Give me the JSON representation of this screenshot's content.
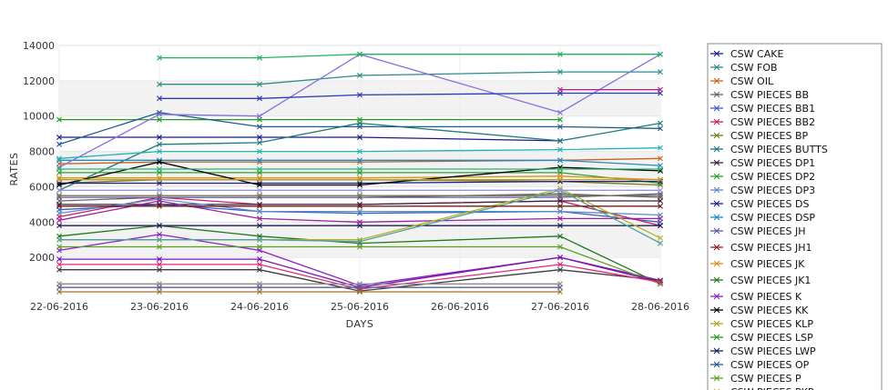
{
  "chart_data": {
    "type": "line",
    "xlabel": "DAYS",
    "ylabel": "RATES",
    "ylim": [
      0,
      14000
    ],
    "y_ticks": [
      2000,
      4000,
      6000,
      8000,
      10000,
      12000,
      14000
    ],
    "grid": "horizontal bands",
    "legend_placement": "right",
    "x": [
      "22-06-2016",
      "23-06-2016",
      "24-06-2016",
      "25-06-2016",
      "26-06-2016",
      "27-06-2016",
      "28-06-2016"
    ],
    "series": [
      {
        "name": "CSW CAKE",
        "color": "#1a1a8c",
        "values": [
          8800,
          8800,
          8800,
          8800,
          null,
          8600,
          null
        ]
      },
      {
        "name": "CSW FOB",
        "color": "#2a8c8c",
        "values": [
          null,
          11800,
          11800,
          12300,
          null,
          12500,
          12500
        ]
      },
      {
        "name": "CSW OIL",
        "color": "#c8641e",
        "values": [
          7300,
          7400,
          7400,
          7400,
          null,
          7500,
          7600
        ]
      },
      {
        "name": "CSW PIECES BB",
        "color": "#666666",
        "values": [
          5200,
          5400,
          5400,
          5400,
          null,
          5600,
          5400
        ]
      },
      {
        "name": "CSW PIECES BB1",
        "color": "#3a5cc8",
        "values": [
          4700,
          5000,
          4600,
          4500,
          null,
          4600,
          4000
        ]
      },
      {
        "name": "CSW PIECES BB2",
        "color": "#c81e64",
        "values": [
          4300,
          5400,
          5000,
          5000,
          null,
          5200,
          3800
        ]
      },
      {
        "name": "CSW PIECES BP",
        "color": "#7a7a1e",
        "values": [
          6200,
          6400,
          6400,
          6400,
          null,
          6300,
          6100
        ]
      },
      {
        "name": "CSW PIECES BUTTS",
        "color": "#1e7a7a",
        "values": [
          5800,
          8400,
          8500,
          9600,
          null,
          8600,
          9600
        ]
      },
      {
        "name": "CSW PIECES DP1",
        "color": "#3c1e3c",
        "values": [
          5000,
          5000,
          5000,
          5000,
          null,
          5200,
          5200
        ]
      },
      {
        "name": "CSW PIECES DP2",
        "color": "#2aa02a",
        "values": [
          6800,
          6800,
          6800,
          6800,
          null,
          6800,
          6200
        ]
      },
      {
        "name": "CSW PIECES DP3",
        "color": "#5a8cc8",
        "values": [
          4500,
          5300,
          4600,
          4600,
          null,
          4600,
          4400
        ]
      },
      {
        "name": "CSW PIECES DS",
        "color": "#1e1e8c",
        "values": [
          6200,
          6200,
          6200,
          6200,
          null,
          6300,
          6300
        ]
      },
      {
        "name": "CSW PIECES DSP",
        "color": "#1e8cc8",
        "values": [
          7500,
          7500,
          7500,
          7500,
          null,
          7500,
          7200
        ]
      },
      {
        "name": "CSW PIECES JH",
        "color": "#5a5aa0",
        "values": [
          5400,
          5400,
          5400,
          5400,
          null,
          5400,
          5600
        ]
      },
      {
        "name": "CSW PIECES JH1",
        "color": "#a01e1e",
        "values": [
          5500,
          5500,
          5500,
          5500,
          null,
          5500,
          5500
        ]
      },
      {
        "name": "CSW PIECES JK",
        "color": "#e08c1e",
        "values": [
          6500,
          6500,
          6500,
          6500,
          null,
          6600,
          6400
        ]
      },
      {
        "name": "CSW PIECES JK1",
        "color": "#1e781e",
        "values": [
          3200,
          3800,
          3200,
          2800,
          null,
          3200,
          500
        ]
      },
      {
        "name": "CSW PIECES K",
        "color": "#8c1ec8",
        "values": [
          2400,
          3300,
          2400,
          400,
          null,
          2000,
          700
        ]
      },
      {
        "name": "CSW PIECES KK",
        "color": "#000000",
        "values": [
          6100,
          7400,
          6100,
          6100,
          null,
          7100,
          6900
        ]
      },
      {
        "name": "CSW PIECES KLP",
        "color": "#b4a01e",
        "values": [
          6400,
          6400,
          6400,
          6400,
          null,
          6400,
          6400
        ]
      },
      {
        "name": "CSW PIECES LSP",
        "color": "#1ea01e",
        "values": [
          9800,
          9800,
          9800,
          9800,
          null,
          9800,
          null
        ]
      },
      {
        "name": "CSW PIECES LWP",
        "color": "#1e1e5a",
        "values": [
          3800,
          3800,
          3800,
          3800,
          null,
          3800,
          3800
        ]
      },
      {
        "name": "CSW PIECES OP",
        "color": "#1e5a8c",
        "values": [
          8400,
          10200,
          9400,
          9400,
          null,
          9400,
          9300
        ]
      },
      {
        "name": "CSW PIECES P",
        "color": "#5aa01e",
        "values": [
          2600,
          2600,
          2600,
          2600,
          null,
          2600,
          500
        ]
      },
      {
        "name": "",
        "color": "#8c6ee0",
        "values": [
          7100,
          10100,
          10000,
          13500,
          null,
          10200,
          13500
        ]
      },
      {
        "name": "",
        "color": "#1eb45a",
        "values": [
          null,
          13300,
          13300,
          13500,
          null,
          13500,
          13500
        ]
      },
      {
        "name": "",
        "color": "#2a3cb4",
        "values": [
          null,
          11000,
          11000,
          11200,
          null,
          11300,
          11300
        ]
      },
      {
        "name": "",
        "color": "#b41e8c",
        "values": [
          null,
          null,
          null,
          null,
          null,
          11500,
          11500
        ]
      },
      {
        "name": "",
        "color": "#1eb4b4",
        "values": [
          7600,
          8000,
          8000,
          8000,
          null,
          8100,
          8200
        ]
      },
      {
        "name": "",
        "color": "#a01ea0",
        "values": [
          4100,
          5200,
          4200,
          4000,
          null,
          4200,
          4200
        ]
      },
      {
        "name": "",
        "color": "#7814b4",
        "values": [
          1900,
          1900,
          1900,
          300,
          null,
          2000,
          600
        ]
      },
      {
        "name": "",
        "color": "#3c3c3c",
        "values": [
          1300,
          1300,
          1300,
          100,
          null,
          1300,
          700
        ]
      },
      {
        "name": "",
        "color": "#e0287a",
        "values": [
          1600,
          1600,
          1600,
          200,
          null,
          1600,
          600
        ]
      },
      {
        "name": "",
        "color": "#b4b41e",
        "values": [
          3000,
          3000,
          3000,
          3000,
          null,
          5900,
          3100
        ]
      },
      {
        "name": "",
        "color": "#78785a",
        "values": [
          5500,
          5500,
          5500,
          5500,
          null,
          5500,
          5500
        ]
      },
      {
        "name": "",
        "color": "#50a0a0",
        "values": [
          3000,
          3000,
          3000,
          2900,
          null,
          5800,
          2800
        ]
      },
      {
        "name": "",
        "color": "#6e1e1e",
        "values": [
          4900,
          4900,
          4900,
          4900,
          null,
          4900,
          4900
        ]
      },
      {
        "name": "",
        "color": "#9696dc",
        "values": [
          5800,
          5800,
          5800,
          5800,
          null,
          5800,
          5800
        ]
      },
      {
        "name": "",
        "color": "#2ab46e",
        "values": [
          7000,
          7000,
          7000,
          7000,
          null,
          7000,
          7000
        ]
      },
      {
        "name": "",
        "color": "#8c8c8c",
        "values": [
          500,
          500,
          500,
          500,
          null,
          500,
          null
        ]
      },
      {
        "name": "",
        "color": "#5a5aa0",
        "values": [
          300,
          300,
          300,
          300,
          null,
          300,
          null
        ]
      },
      {
        "name": "",
        "color": "#a0782a",
        "values": [
          50,
          50,
          50,
          50,
          null,
          50,
          null
        ]
      }
    ],
    "legend_entries": [
      {
        "name": "CSW CAKE",
        "color": "#1a1a8c"
      },
      {
        "name": "CSW FOB",
        "color": "#2a8c8c"
      },
      {
        "name": "CSW OIL",
        "color": "#c8641e"
      },
      {
        "name": "CSW PIECES BB",
        "color": "#666666"
      },
      {
        "name": "CSW PIECES BB1",
        "color": "#3a5cc8"
      },
      {
        "name": "CSW PIECES BB2",
        "color": "#c81e64"
      },
      {
        "name": "CSW PIECES BP",
        "color": "#7a7a1e"
      },
      {
        "name": "CSW PIECES BUTTS",
        "color": "#1e7a7a"
      },
      {
        "name": "CSW PIECES DP1",
        "color": "#3c1e3c"
      },
      {
        "name": "CSW PIECES DP2",
        "color": "#2aa02a"
      },
      {
        "name": "CSW PIECES DP3",
        "color": "#5a8cc8"
      },
      {
        "name": "CSW PIECES DS",
        "color": "#1e1e8c"
      },
      {
        "name": "CSW PIECES DSP",
        "color": "#1e8cc8"
      },
      {
        "name": "CSW PIECES JH",
        "color": "#5a5aa0"
      },
      {
        "name": "CSW PIECES JH1",
        "color": "#a01e1e"
      },
      {
        "name": "CSW PIECES JK",
        "color": "#e08c1e"
      },
      {
        "name": "CSW PIECES JK1",
        "color": "#1e781e"
      },
      {
        "name": "CSW PIECES K",
        "color": "#8c1ec8"
      },
      {
        "name": "CSW PIECES KK",
        "color": "#000000"
      },
      {
        "name": "CSW PIECES KLP",
        "color": "#b4a01e"
      },
      {
        "name": "CSW PIECES LSP",
        "color": "#1ea01e"
      },
      {
        "name": "CSW PIECES LWP",
        "color": "#1e1e5a"
      },
      {
        "name": "CSW PIECES OP",
        "color": "#1e5a8c"
      },
      {
        "name": "CSW PIECES P",
        "color": "#5aa01e"
      },
      {
        "name": "CSW PIECES PKP",
        "color": "#b4a01e"
      }
    ]
  }
}
